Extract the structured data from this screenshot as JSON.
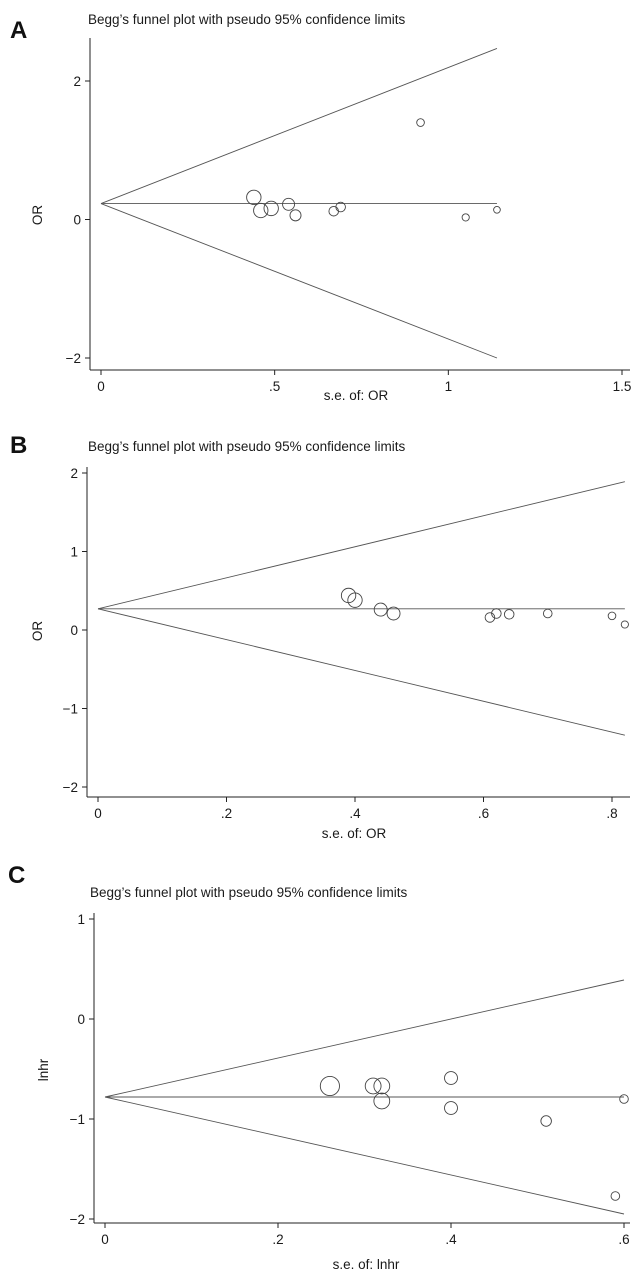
{
  "chart_data": [
    {
      "panel": "A",
      "type": "scatter",
      "subtype": "funnel",
      "title": "Begg’s funnel plot with pseudo 95% confidence limits",
      "xlabel": "s.e. of: OR",
      "ylabel": "OR",
      "xlim": [
        0,
        1.5
      ],
      "ylim": [
        -2.1,
        2.6
      ],
      "xticks": [
        0,
        0.5,
        1,
        1.5
      ],
      "xtick_labels": [
        "0",
        ".5",
        "1",
        "1.5"
      ],
      "yticks": [
        -2,
        0,
        2
      ],
      "ytick_labels": [
        "−2",
        "0",
        "2"
      ],
      "pooled_estimate": 0.23,
      "funnel_upper": [
        [
          0,
          0.23
        ],
        [
          1.14,
          2.47
        ]
      ],
      "funnel_lower": [
        [
          0,
          0.23
        ],
        [
          1.14,
          -2.0
        ]
      ],
      "points": [
        {
          "x": 0.44,
          "y": 0.32,
          "size": 3
        },
        {
          "x": 0.46,
          "y": 0.13,
          "size": 3
        },
        {
          "x": 0.49,
          "y": 0.16,
          "size": 3
        },
        {
          "x": 0.54,
          "y": 0.22,
          "size": 2.5
        },
        {
          "x": 0.56,
          "y": 0.06,
          "size": 2.3
        },
        {
          "x": 0.67,
          "y": 0.12,
          "size": 2
        },
        {
          "x": 0.69,
          "y": 0.18,
          "size": 2
        },
        {
          "x": 0.92,
          "y": 1.4,
          "size": 1.6
        },
        {
          "x": 1.05,
          "y": 0.03,
          "size": 1.5
        },
        {
          "x": 1.14,
          "y": 0.14,
          "size": 1.4
        }
      ]
    },
    {
      "panel": "B",
      "type": "scatter",
      "subtype": "funnel",
      "title": "Begg’s funnel plot with pseudo 95% confidence limits",
      "xlabel": "s.e. of: OR",
      "ylabel": "OR",
      "xlim": [
        0,
        0.83
      ],
      "ylim": [
        -2.1,
        2.1
      ],
      "xticks": [
        0,
        0.2,
        0.4,
        0.6,
        0.8
      ],
      "xtick_labels": [
        "0",
        ".2",
        ".4",
        ".6",
        ".8"
      ],
      "yticks": [
        -2,
        -1,
        0,
        1,
        2
      ],
      "ytick_labels": [
        "−2",
        "−1",
        "0",
        "1",
        "2"
      ],
      "pooled_estimate": 0.27,
      "funnel_upper": [
        [
          0,
          0.27
        ],
        [
          0.82,
          1.89
        ]
      ],
      "funnel_lower": [
        [
          0,
          0.27
        ],
        [
          0.82,
          -1.34
        ]
      ],
      "points": [
        {
          "x": 0.39,
          "y": 0.44,
          "size": 3
        },
        {
          "x": 0.4,
          "y": 0.38,
          "size": 3
        },
        {
          "x": 0.44,
          "y": 0.26,
          "size": 2.7
        },
        {
          "x": 0.46,
          "y": 0.21,
          "size": 2.7
        },
        {
          "x": 0.61,
          "y": 0.16,
          "size": 2
        },
        {
          "x": 0.62,
          "y": 0.21,
          "size": 2
        },
        {
          "x": 0.64,
          "y": 0.2,
          "size": 2
        },
        {
          "x": 0.7,
          "y": 0.21,
          "size": 1.8
        },
        {
          "x": 0.8,
          "y": 0.18,
          "size": 1.6
        },
        {
          "x": 0.82,
          "y": 0.07,
          "size": 1.5
        }
      ]
    },
    {
      "panel": "C",
      "type": "scatter",
      "subtype": "funnel",
      "title": "Begg’s funnel plot with pseudo 95% confidence limits",
      "xlabel": "s.e. of: lnhr",
      "ylabel": "lnhr",
      "xlim": [
        0,
        0.6
      ],
      "ylim": [
        -2.1,
        1.1
      ],
      "xticks": [
        0,
        0.2,
        0.4,
        0.6
      ],
      "xtick_labels": [
        "0",
        ".2",
        ".4",
        ".6"
      ],
      "yticks": [
        -2,
        -1,
        0,
        1
      ],
      "ytick_labels": [
        "−2",
        "−1",
        "0",
        "1"
      ],
      "pooled_estimate": -0.78,
      "funnel_upper": [
        [
          0,
          -0.78
        ],
        [
          0.6,
          0.39
        ]
      ],
      "funnel_lower": [
        [
          0,
          -0.78
        ],
        [
          0.6,
          -1.95
        ]
      ],
      "points": [
        {
          "x": 0.26,
          "y": -0.67,
          "size": 4
        },
        {
          "x": 0.31,
          "y": -0.67,
          "size": 3.3
        },
        {
          "x": 0.32,
          "y": -0.67,
          "size": 3.3
        },
        {
          "x": 0.32,
          "y": -0.82,
          "size": 3.3
        },
        {
          "x": 0.4,
          "y": -0.59,
          "size": 2.7
        },
        {
          "x": 0.4,
          "y": -0.89,
          "size": 2.7
        },
        {
          "x": 0.51,
          "y": -1.02,
          "size": 2.2
        },
        {
          "x": 0.59,
          "y": -1.77,
          "size": 1.8
        },
        {
          "x": 0.6,
          "y": -0.8,
          "size": 1.8
        }
      ]
    }
  ],
  "panels": [
    {
      "letter": "A"
    },
    {
      "letter": "B"
    },
    {
      "letter": "C"
    }
  ]
}
